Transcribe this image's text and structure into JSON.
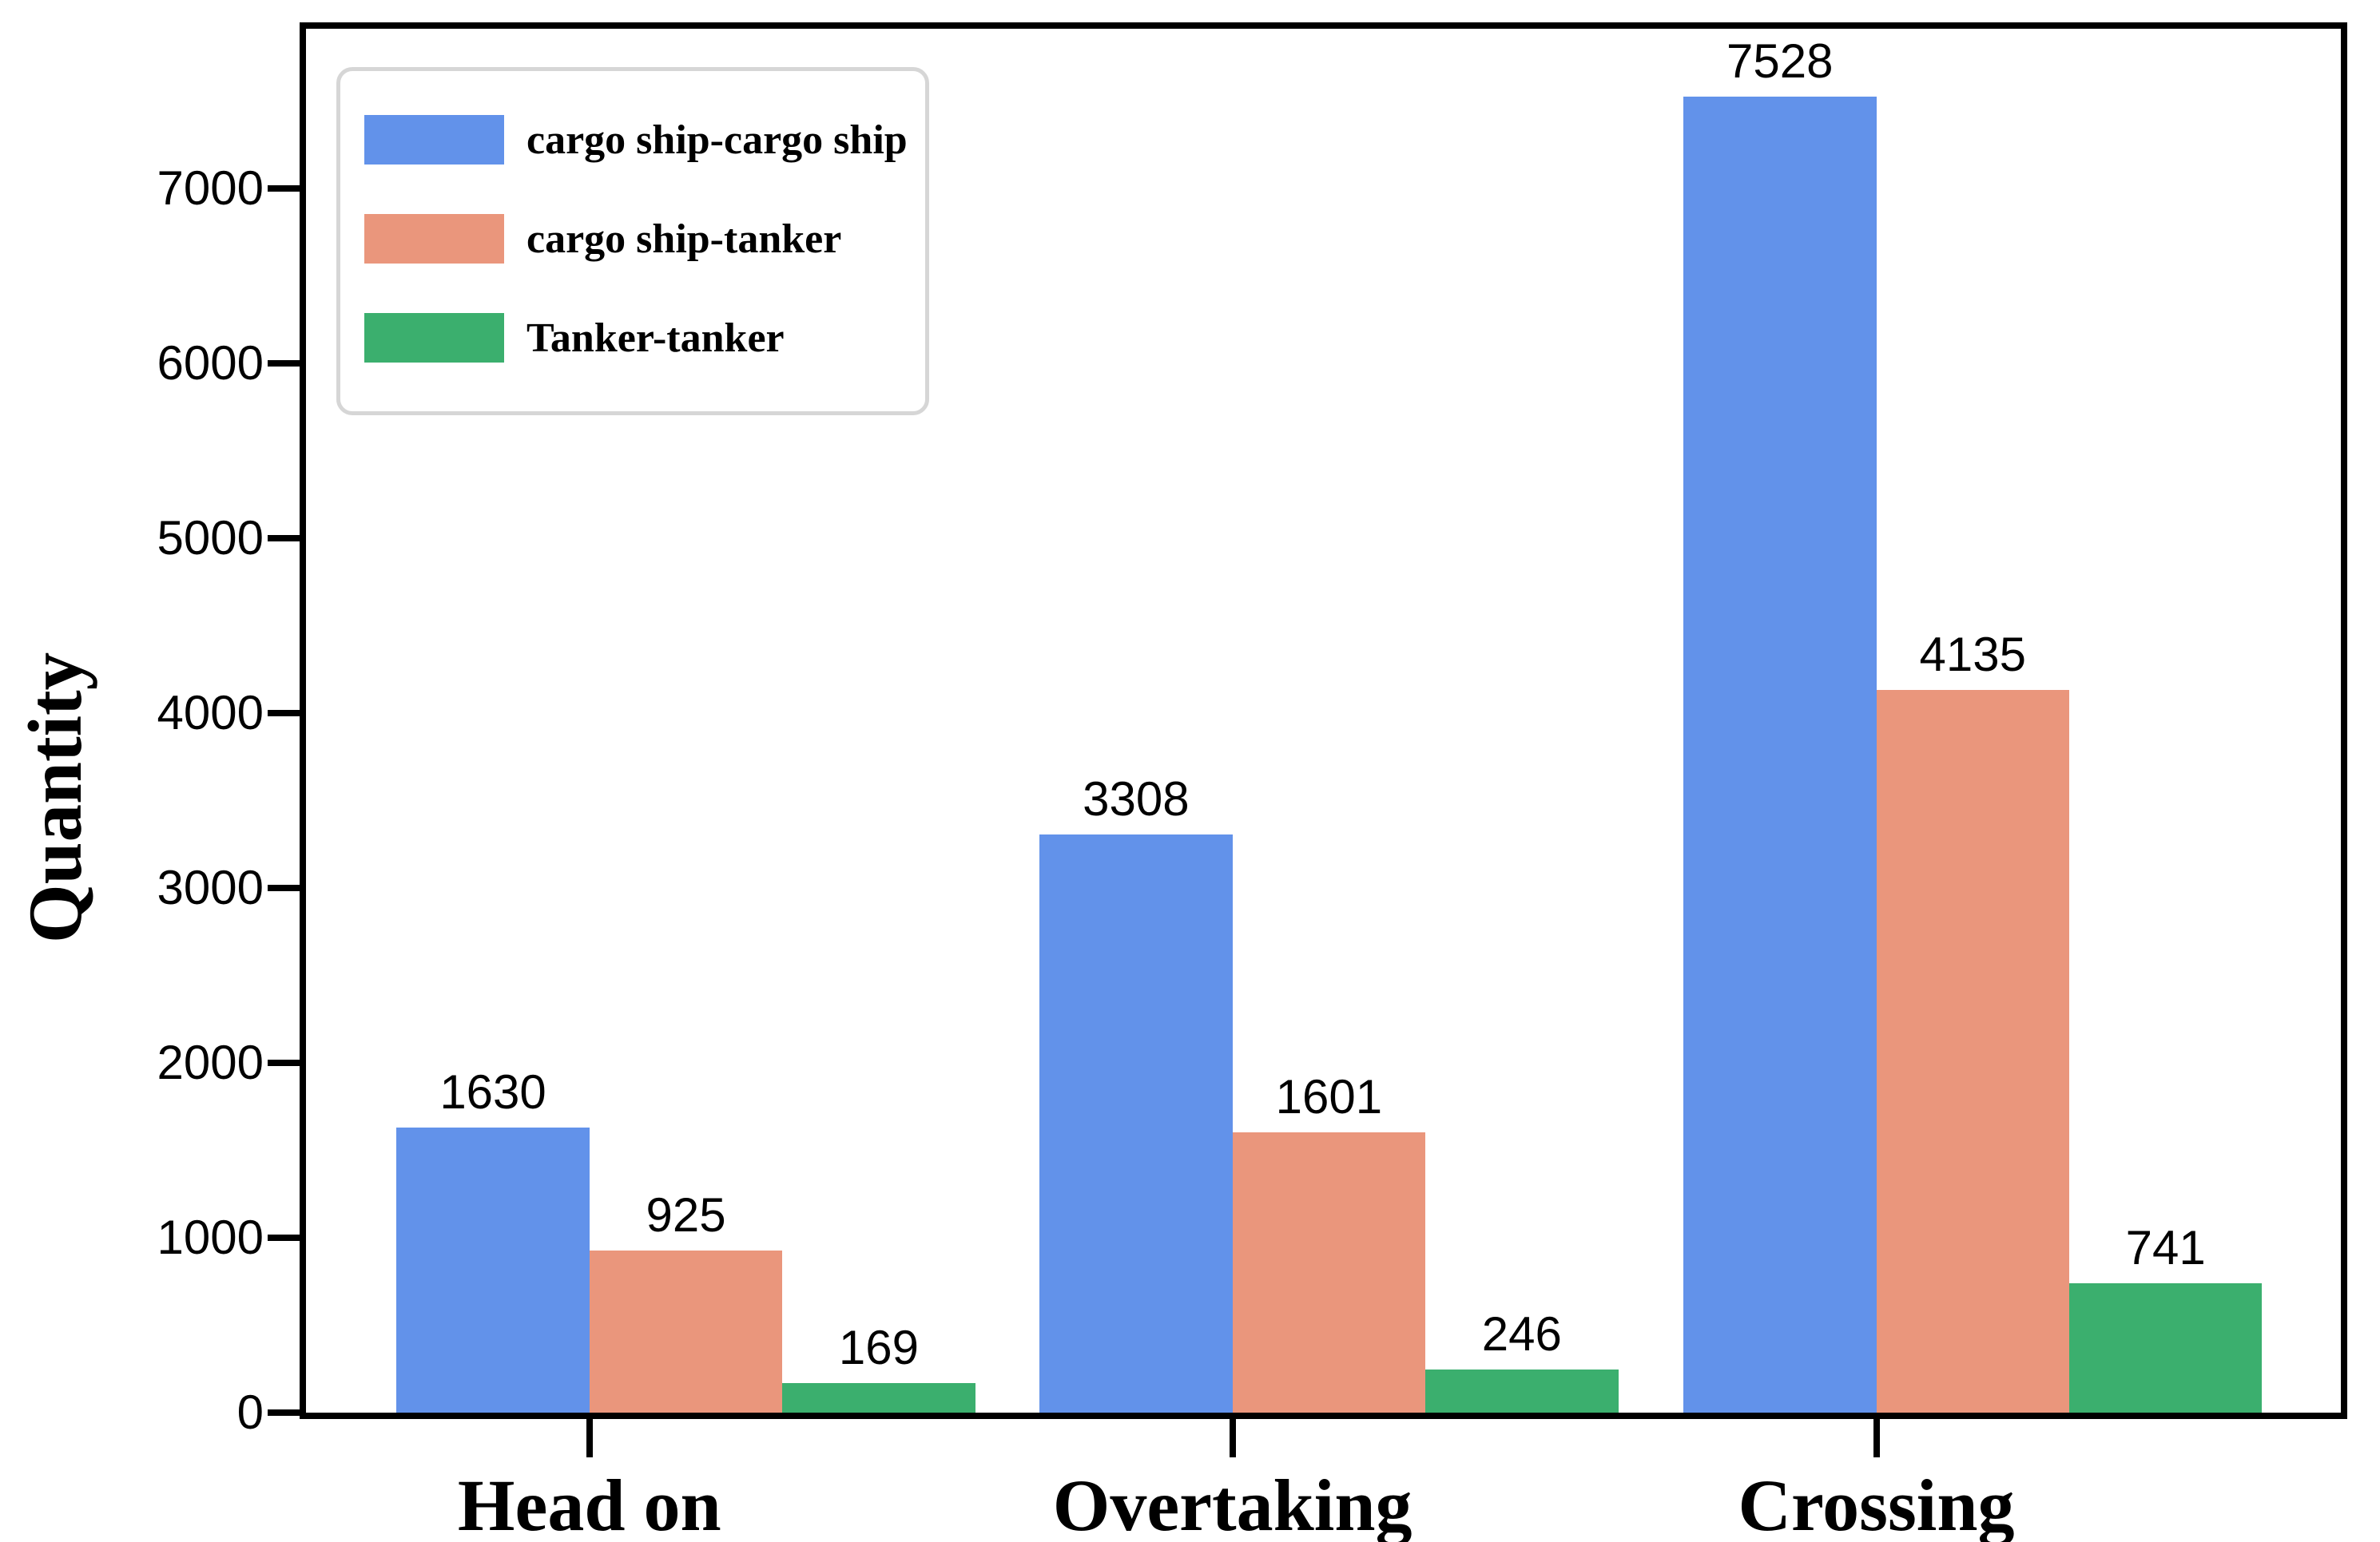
{
  "chart_data": {
    "type": "bar",
    "title": "",
    "xlabel": "",
    "ylabel": "Quantity",
    "categories": [
      "Head on",
      "Overtaking",
      "Crossing"
    ],
    "series": [
      {
        "name": "cargo ship-cargo ship",
        "color": "#6292EA",
        "values": [
          1630,
          3308,
          7528
        ]
      },
      {
        "name": "cargo ship-tanker",
        "color": "#EA967C",
        "values": [
          925,
          1601,
          4135
        ]
      },
      {
        "name": "Tanker-tanker",
        "color": "#3BAF6E",
        "values": [
          169,
          246,
          741
        ]
      }
    ],
    "value_labels_shown": true,
    "y_ticks": [
      0,
      1000,
      2000,
      3000,
      4000,
      5000,
      6000,
      7000
    ],
    "ylim": [
      0,
      7915
    ],
    "grid": false,
    "legend_position": "upper-left",
    "axis_color": "#000000",
    "background_color": "#ffffff"
  }
}
